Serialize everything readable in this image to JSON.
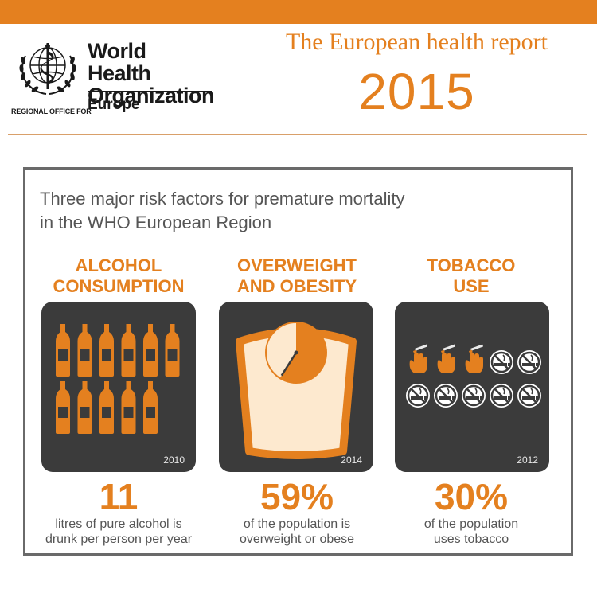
{
  "header": {
    "org_line1": "World Health",
    "org_line2": "Organization",
    "regional_label": "REGIONAL OFFICE FOR",
    "region": "Europe",
    "report_title": "The European health report",
    "report_year": "2015"
  },
  "colors": {
    "accent": "#e4801f",
    "card_bg": "#3b3b3b",
    "panel_border": "#6a6a6a",
    "text": "#555555"
  },
  "infographic": {
    "title_line1": "Three major risk factors for premature mortality",
    "title_line2": "in the WHO European Region",
    "columns": [
      {
        "heading_line1": "ALCOHOL",
        "heading_line2": "CONSUMPTION",
        "icon": "wine-bottle-icon",
        "icon_count": 11,
        "year": "2010",
        "value": "11",
        "caption_line1": "litres of pure alcohol is",
        "caption_line2": "drunk per person per year"
      },
      {
        "heading_line1": "OVERWEIGHT",
        "heading_line2": "AND OBESITY",
        "icon": "scale-gauge-icon",
        "gauge_fraction": 0.59,
        "year": "2014",
        "value": "59%",
        "caption_line1": "of the population is",
        "caption_line2": "overweight or obese"
      },
      {
        "heading_line1": "TOBACCO",
        "heading_line2": "USE",
        "icon": "smoking-hand-icon",
        "icon_alt": "no-smoking-icon",
        "smokers": 3,
        "total": 10,
        "year": "2012",
        "value": "30%",
        "caption_line1": "of the population",
        "caption_line2": "uses tobacco"
      }
    ]
  }
}
